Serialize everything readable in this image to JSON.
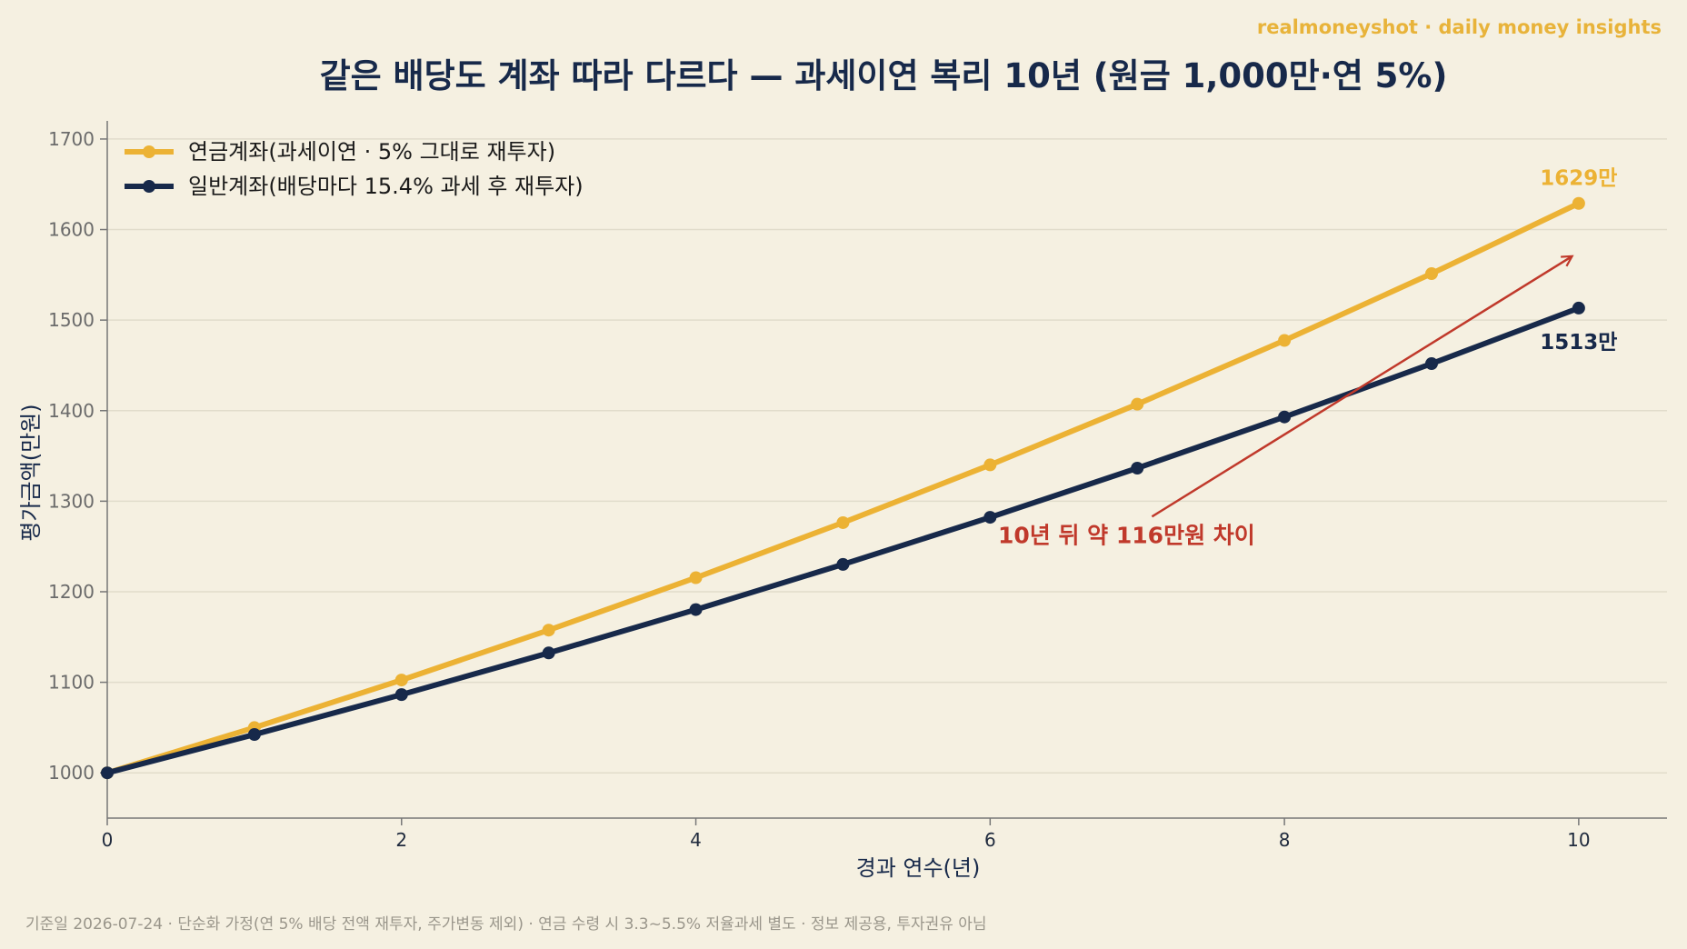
{
  "brand": "realmoneyshot · daily money insights",
  "footnote": "기준일 2026-07-24 · 단순화 가정(연 5% 배당 전액 재투자, 주가변동 제외) · 연금 수령 시 3.3~5.5% 저율과세 별도 · 정보 제공용, 투자권유 아님",
  "colors": {
    "pension": "#ecb234",
    "general": "#17294a",
    "annotation": "#c0392b",
    "background": "#f5f0e1",
    "grid": "#e1dccb"
  },
  "chart_data": {
    "type": "line",
    "title": "같은 배당도 계좌 따라 다르다 — 과세이연 복리 10년 (원금 1,000만·연 5%)",
    "xlabel": "경과 연수(년)",
    "ylabel": "평가금액(만원)",
    "xlim": [
      0,
      10.6
    ],
    "ylim": [
      950,
      1720
    ],
    "x_ticks": [
      0,
      2,
      4,
      6,
      8,
      10
    ],
    "y_ticks": [
      1000,
      1100,
      1200,
      1300,
      1400,
      1500,
      1600,
      1700
    ],
    "grid": "horizontal",
    "legend_position": "top-left",
    "x": [
      0,
      1,
      2,
      3,
      4,
      5,
      6,
      7,
      8,
      9,
      10
    ],
    "series": [
      {
        "name": "연금계좌(과세이연 · 5% 그대로 재투자)",
        "color": "#ecb234",
        "values": [
          1000,
          1050,
          1102.5,
          1157.6,
          1215.5,
          1276.3,
          1340.1,
          1407.1,
          1477.5,
          1551.3,
          1628.9
        ],
        "end_label": "1629만"
      },
      {
        "name": "일반계좌(배당마다 15.4% 과세 후 재투자)",
        "color": "#17294a",
        "values": [
          1000,
          1042.3,
          1086.4,
          1132.4,
          1180.3,
          1230.2,
          1282.2,
          1336.5,
          1393.0,
          1451.9,
          1513.3
        ],
        "end_label": "1513만"
      }
    ],
    "annotation": {
      "text": "10년 뒤 약 116만원 차이",
      "arrow_from": [
        7.1,
        1283
      ],
      "arrow_to": [
        9.95,
        1570
      ]
    }
  }
}
